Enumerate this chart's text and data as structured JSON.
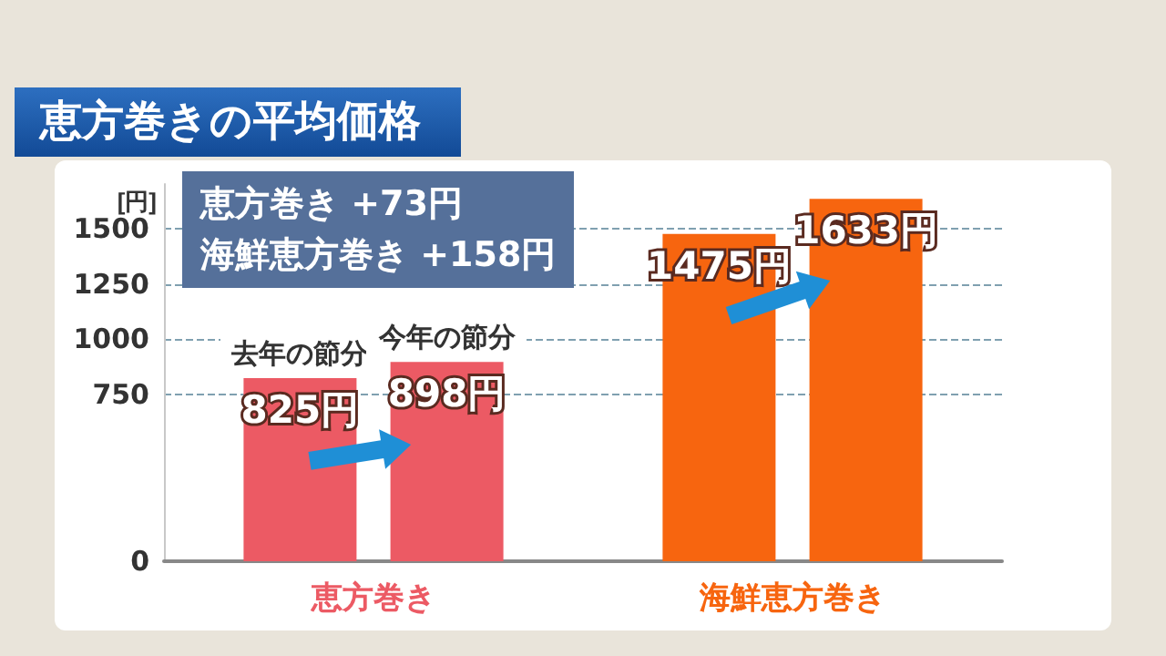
{
  "chart_data": {
    "type": "bar",
    "title": "恵方巻きの平均価格",
    "ylabel": "[円]",
    "categories": [
      "恵方巻き",
      "海鮮恵方巻き"
    ],
    "series": [
      {
        "name": "去年の節分",
        "colors": [
          "#ec5a64",
          "#f7650f"
        ],
        "values": [
          825,
          1475
        ],
        "value_labels": [
          "825円",
          "1475円"
        ]
      },
      {
        "name": "今年の節分",
        "colors": [
          "#ec5a64",
          "#f7650f"
        ],
        "values": [
          898,
          1633
        ],
        "value_labels": [
          "898円",
          "1633円"
        ]
      }
    ],
    "ylim": [
      0,
      1700
    ],
    "yticks": [
      0,
      750,
      1000,
      1250,
      1500
    ],
    "grid": "y",
    "legend": false,
    "annotations": [
      "恵方巻き +73円",
      "海鮮恵方巻き +158円"
    ]
  }
}
